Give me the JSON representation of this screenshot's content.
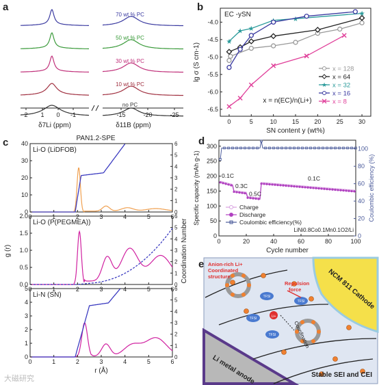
{
  "panels": {
    "a": {
      "letter": "a",
      "xlabel_li": "δ7Li (ppm)",
      "xlabel_b": "δ11B (ppm)",
      "li_ticks": [
        "2",
        "1",
        "0",
        "-1"
      ],
      "b_ticks": [
        "-15",
        "-20",
        "-25"
      ],
      "traces": [
        {
          "label": "70 wt % PC",
          "color": "#3a3aa0"
        },
        {
          "label": "50 wt % PC",
          "color": "#3a9a3a"
        },
        {
          "label": "30 wt % PC",
          "color": "#c0307a"
        },
        {
          "label": "10 wt % PC",
          "color": "#a03040"
        },
        {
          "label": "no PC",
          "color": "#333333"
        }
      ]
    },
    "b": {
      "letter": "b",
      "chart_data": {
        "type": "line",
        "title": "EC -ySN",
        "xlabel": "SN content y (wt%)",
        "ylabel": "lg σ (S cm-1)",
        "xlim": [
          -2,
          32
        ],
        "ylim": [
          -6.7,
          -3.6
        ],
        "x_ticks": [
          "0",
          "5",
          "10",
          "15",
          "20",
          "25",
          "30"
        ],
        "y_ticks": [
          "-4.0",
          "-4.5",
          "-5.0",
          "-5.5",
          "-6.0",
          "-6.5"
        ],
        "annotation": "x = n(EC)/n(Li+)",
        "series": [
          {
            "name": "x = 128",
            "color": "#999999",
            "marker": "circle",
            "x": [
              0,
              0.3,
              5,
              10,
              15,
              20,
              25,
              30
            ],
            "y": [
              -5.1,
              -4.98,
              -4.75,
              -4.68,
              -4.58,
              -4.32,
              -4.2,
              -4.02
            ]
          },
          {
            "name": "x = 64",
            "color": "#222222",
            "marker": "diamond",
            "x": [
              0,
              2.5,
              5,
              10,
              20,
              30
            ],
            "y": [
              -4.85,
              -4.72,
              -4.55,
              -4.4,
              -4.22,
              -3.88
            ]
          },
          {
            "name": "x = 32",
            "color": "#2a9a9a",
            "marker": "star",
            "x": [
              0,
              2.5,
              5,
              10,
              15,
              30
            ],
            "y": [
              -4.55,
              -4.25,
              -4.18,
              -3.95,
              -3.9,
              -3.75
            ]
          },
          {
            "name": "x = 16",
            "color": "#3a3aa0",
            "marker": "circle",
            "x": [
              0,
              2.5,
              5,
              10,
              17.5,
              28.5
            ],
            "y": [
              -5.3,
              -4.78,
              -4.38,
              -4.0,
              -3.83,
              -3.7
            ]
          },
          {
            "name": "x = 8",
            "color": "#e0409a",
            "marker": "x",
            "x": [
              0,
              2.5,
              5,
              10,
              17.5,
              26
            ],
            "y": [
              -6.42,
              -6.18,
              -5.8,
              -5.25,
              -4.97,
              -4.38
            ]
          }
        ]
      }
    },
    "c": {
      "letter": "c",
      "title": "PAN1.2-SPE",
      "xlabel": "r (Å)",
      "ylabel_left": "g (r)",
      "ylabel_right": "Coordination Number",
      "x_ticks": [
        "0",
        "1",
        "2",
        "3",
        "4",
        "5",
        "6"
      ],
      "subplots": [
        {
          "label": "Li-O (LiDFOB)",
          "y_ticks": [
            "0",
            "10",
            "20",
            "30",
            "40"
          ],
          "cn_ticks": [
            "0",
            "1",
            "2",
            "3",
            "4",
            "5",
            "6"
          ],
          "rdf_color": "#f0a050",
          "cn_color": "#3a3ac0"
        },
        {
          "label": "Li-O (P(PEGMEA))",
          "y_ticks": [
            "0.0",
            "0.5",
            "1.0",
            "1.5",
            "2.0"
          ],
          "cn_ticks": [
            "0",
            "1",
            "2",
            "3",
            "4",
            "5",
            "6"
          ],
          "rdf_color": "#d020a0",
          "cn_color": "#3a3ac0"
        },
        {
          "label": "Li-N (SN)",
          "y_ticks": [
            "0",
            "1",
            "2",
            "3",
            "4",
            "5"
          ],
          "cn_ticks": [
            "0",
            "1",
            "2",
            "3",
            "4",
            "5",
            "6"
          ],
          "rdf_color": "#d020a0",
          "cn_color": "#3a3ac0"
        }
      ]
    },
    "d": {
      "letter": "d",
      "chart_data": {
        "type": "line",
        "xlabel": "Cycle number",
        "ylabel_left": "Specific capacity (mAh g-1)",
        "ylabel_right": "Coulombic efficiency (%)",
        "xlim": [
          0,
          100
        ],
        "ylim_left": [
          0,
          320
        ],
        "ylim_right": [
          0,
          110
        ],
        "x_ticks": [
          "0",
          "20",
          "40",
          "60",
          "80",
          "100"
        ],
        "y_ticks_left": [
          "0",
          "50",
          "100",
          "150",
          "200",
          "250",
          "300"
        ],
        "y_ticks_right": [
          "0",
          "20",
          "40",
          "60",
          "80",
          "100"
        ],
        "rate_labels": [
          "0.1C",
          "0.3C",
          "0.5C",
          "0.1C"
        ],
        "cell_label": "LiNi0.8Co0.1Mn0.1O2/Li",
        "series": [
          {
            "name": "Charge",
            "color": "#d8a0e0"
          },
          {
            "name": "Discharge",
            "color": "#b040c0"
          },
          {
            "name": "Coulombic efficiency(%)",
            "color": "#4a5a9a"
          }
        ]
      }
    },
    "e": {
      "letter": "e",
      "labels": {
        "anion_rich": "Anion-rich Li+ Coordinated structure",
        "repulsion": "Repulsion force",
        "coordination": "Coordination",
        "cathode": "NCM 811 Cathode",
        "anode": "Li metal anode",
        "interphase": "Stable SEI and CEI",
        "tfsi": "TFSI",
        "li": "Li+"
      }
    }
  },
  "watermark": "大磁研究"
}
